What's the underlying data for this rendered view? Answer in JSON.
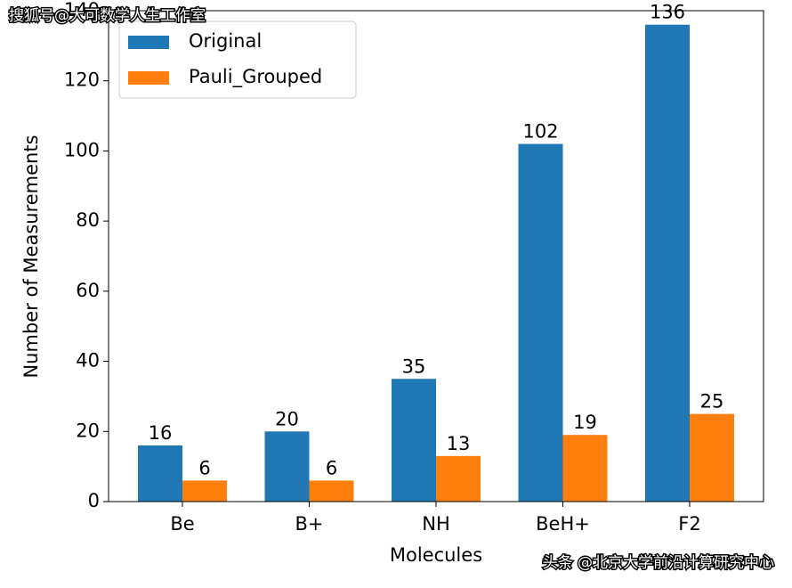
{
  "chart_data": {
    "type": "bar",
    "xlabel": "Molecules",
    "ylabel": "Number of Measurements",
    "categories": [
      "Be",
      "B+",
      "NH",
      "BeH+",
      "F2"
    ],
    "series": [
      {
        "name": "Original",
        "color": "#1f77b4",
        "values": [
          16,
          20,
          35,
          102,
          136
        ]
      },
      {
        "name": "Pauli_Grouped",
        "color": "#ff7f0e",
        "values": [
          6,
          6,
          13,
          19,
          25
        ]
      }
    ],
    "ylim": [
      0,
      140
    ],
    "yticks": [
      0,
      20,
      40,
      60,
      80,
      100,
      120,
      140
    ],
    "legend": "upper-left",
    "data_labels": true
  },
  "watermarks": [
    "搜狐号@大可数学人生工作室",
    "头条 @北京大学前沿计算研究中心"
  ]
}
